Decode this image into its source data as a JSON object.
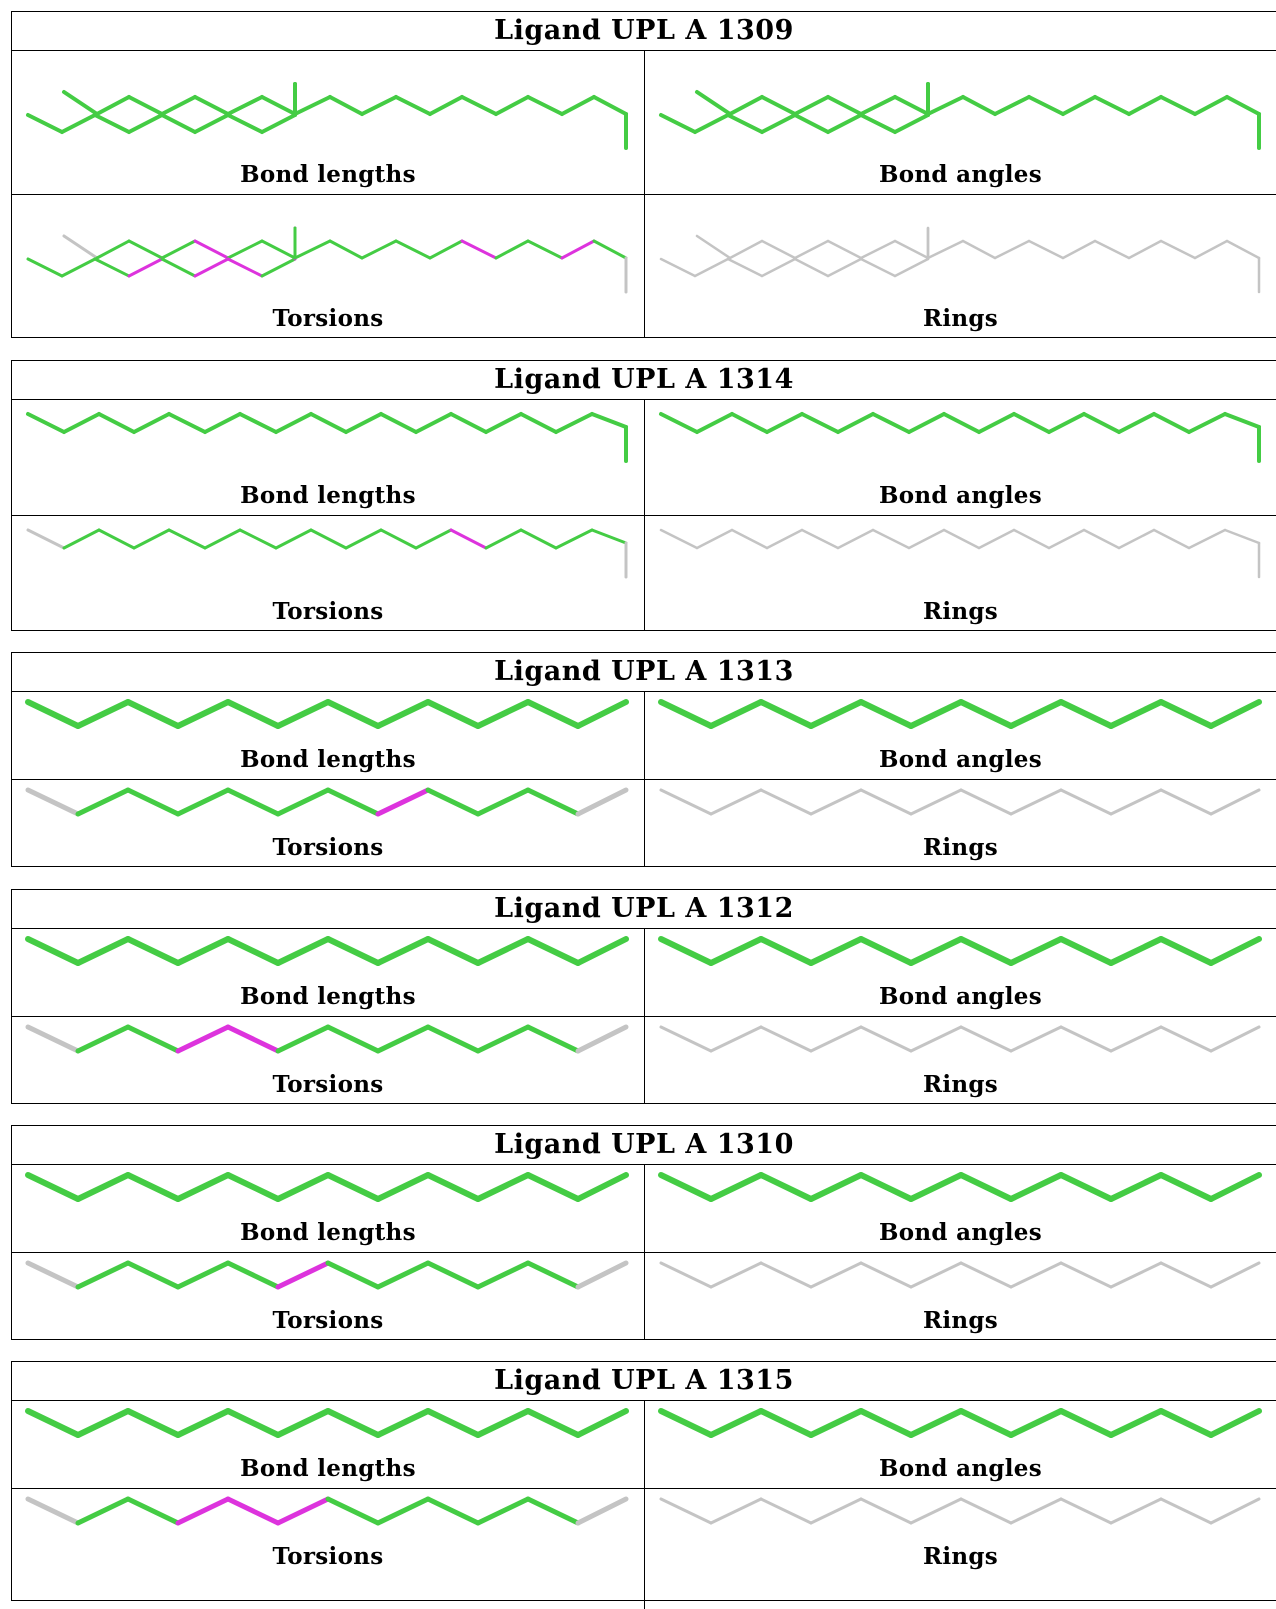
{
  "colors": {
    "ok": "#44cc44",
    "outlier": "#dd33dd",
    "na": "#c4c4c4"
  },
  "ligands": [
    {
      "title": "Ligand UPL A 1309",
      "molecule": "branched",
      "panels": [
        {
          "caption": "Bond lengths",
          "colors": [
            "ok"
          ]
        },
        {
          "caption": "Bond angles",
          "colors": [
            "ok"
          ]
        },
        {
          "caption": "Torsions",
          "colors": [
            "na",
            "ok",
            "ok",
            "ok",
            "outlier",
            "ok",
            "ok",
            "ok",
            "ok",
            "ok",
            "ok",
            "ok",
            "outlier",
            "ok",
            "ok",
            "outlier",
            "ok",
            "na",
            "ok",
            "ok",
            "ok",
            "outlier",
            "ok",
            "outlier",
            "outlier",
            "ok",
            "outlier",
            "ok"
          ]
        },
        {
          "caption": "Rings",
          "colors": [
            "na"
          ]
        }
      ]
    },
    {
      "title": "Ligand UPL A 1314",
      "molecule": "hooked",
      "panels": [
        {
          "caption": "Bond lengths",
          "colors": [
            "ok"
          ]
        },
        {
          "caption": "Bond angles",
          "colors": [
            "ok"
          ]
        },
        {
          "caption": "Torsions",
          "colors": [
            "na",
            "ok",
            "ok",
            "ok",
            "ok",
            "ok",
            "ok",
            "ok",
            "ok",
            "ok",
            "ok",
            "ok",
            "outlier",
            "ok",
            "ok",
            "ok",
            "ok",
            "na"
          ]
        },
        {
          "caption": "Rings",
          "colors": [
            "na"
          ]
        }
      ]
    },
    {
      "title": "Ligand UPL A 1313",
      "molecule": "zigzag",
      "panels": [
        {
          "caption": "Bond lengths",
          "colors": [
            "ok"
          ]
        },
        {
          "caption": "Bond angles",
          "colors": [
            "ok"
          ]
        },
        {
          "caption": "Torsions",
          "colors": [
            "na",
            "ok",
            "ok",
            "ok",
            "ok",
            "ok",
            "ok",
            "outlier",
            "ok",
            "ok",
            "ok",
            "na"
          ]
        },
        {
          "caption": "Rings",
          "colors": [
            "na"
          ]
        }
      ]
    },
    {
      "title": "Ligand UPL A 1312",
      "molecule": "zigzag",
      "panels": [
        {
          "caption": "Bond lengths",
          "colors": [
            "ok"
          ]
        },
        {
          "caption": "Bond angles",
          "colors": [
            "ok"
          ]
        },
        {
          "caption": "Torsions",
          "colors": [
            "na",
            "ok",
            "ok",
            "outlier",
            "outlier",
            "ok",
            "ok",
            "ok",
            "ok",
            "ok",
            "ok",
            "na"
          ]
        },
        {
          "caption": "Rings",
          "colors": [
            "na"
          ]
        }
      ]
    },
    {
      "title": "Ligand UPL A 1310",
      "molecule": "zigzag",
      "panels": [
        {
          "caption": "Bond lengths",
          "colors": [
            "ok"
          ]
        },
        {
          "caption": "Bond angles",
          "colors": [
            "ok"
          ]
        },
        {
          "caption": "Torsions",
          "colors": [
            "na",
            "ok",
            "ok",
            "ok",
            "ok",
            "outlier",
            "ok",
            "ok",
            "ok",
            "ok",
            "ok",
            "na"
          ]
        },
        {
          "caption": "Rings",
          "colors": [
            "na"
          ]
        }
      ]
    },
    {
      "title": "Ligand UPL A 1315",
      "molecule": "zigzag",
      "panels": [
        {
          "caption": "Bond lengths",
          "colors": [
            "ok"
          ]
        },
        {
          "caption": "Bond angles",
          "colors": [
            "ok"
          ]
        },
        {
          "caption": "Torsions",
          "colors": [
            "na",
            "ok",
            "ok",
            "outlier",
            "outlier",
            "outlier",
            "ok",
            "ok",
            "ok",
            "ok",
            "ok",
            "na"
          ]
        },
        {
          "caption": "Rings",
          "colors": [
            "na"
          ]
        }
      ]
    }
  ]
}
